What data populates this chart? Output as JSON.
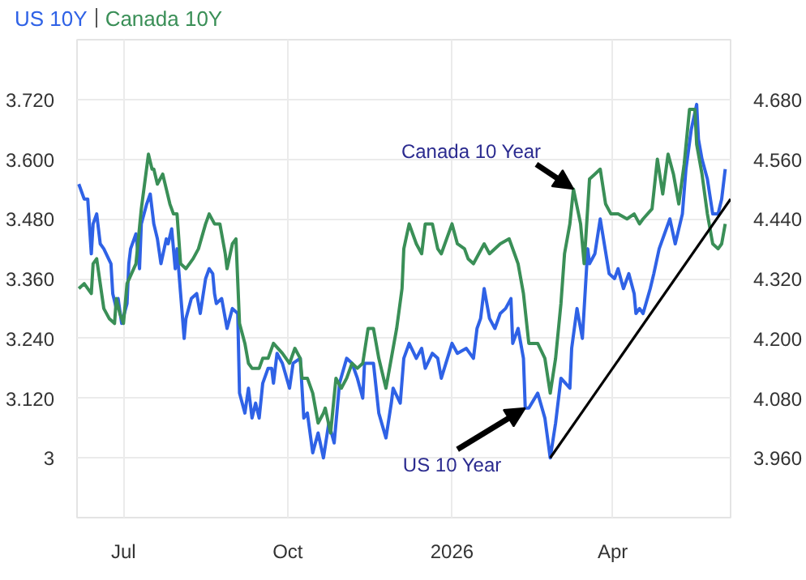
{
  "chart_data": {
    "type": "line",
    "grid": true,
    "line_style": "solid",
    "xlim": [
      "2025-06-05",
      "2026-06-06"
    ],
    "xticks": [
      {
        "value": "2025-07-01",
        "label": "Jul"
      },
      {
        "value": "2025-10-01",
        "label": "Oct"
      },
      {
        "value": "2026-01-01",
        "label": "2026"
      },
      {
        "value": "2026-04-01",
        "label": "Apr"
      }
    ],
    "ylim": [
      2.88,
      3.84
    ],
    "yticks": [
      3,
      {
        "value": 3.12,
        "label": "3.120"
      },
      {
        "value": 3.24,
        "label": "3.240"
      },
      {
        "value": 3.36,
        "label": "3.360"
      },
      {
        "value": 3.48,
        "label": "3.480"
      },
      {
        "value": 3.6,
        "label": "3.600"
      },
      {
        "value": 3.72,
        "label": "3.720"
      }
    ],
    "y2lim": [
      3.84,
      4.8
    ],
    "y2ticks": [
      {
        "value": 3.96,
        "label": "3.960"
      },
      {
        "value": 4.08,
        "label": "4.080"
      },
      {
        "value": 4.2,
        "label": "4.200"
      },
      {
        "value": 4.32,
        "label": "4.320"
      },
      {
        "value": 4.44,
        "label": "4.440"
      },
      {
        "value": 4.56,
        "label": "4.560"
      },
      {
        "value": 4.68,
        "label": "4.680"
      }
    ],
    "series": [
      {
        "name": "US 10Y",
        "color": "#2f62e6",
        "axis": "y2",
        "x": [
          "2025-06-06",
          "2025-06-09",
          "2025-06-11",
          "2025-06-13",
          "2025-06-14",
          "2025-06-16",
          "2025-06-18",
          "2025-06-20",
          "2025-06-24",
          "2025-06-25",
          "2025-06-27",
          "2025-06-28",
          "2025-06-30",
          "2025-07-03",
          "2025-07-04",
          "2025-07-05",
          "2025-07-08",
          "2025-07-10",
          "2025-07-11",
          "2025-07-14",
          "2025-07-16",
          "2025-07-18",
          "2025-07-20",
          "2025-07-22",
          "2025-07-25",
          "2025-07-26",
          "2025-07-28",
          "2025-07-30",
          "2025-07-31",
          "2025-08-02",
          "2025-08-04",
          "2025-08-05",
          "2025-08-08",
          "2025-08-11",
          "2025-08-13",
          "2025-08-16",
          "2025-08-18",
          "2025-08-20",
          "2025-08-21",
          "2025-08-22",
          "2025-08-25",
          "2025-08-28",
          "2025-08-31",
          "2025-09-03",
          "2025-09-04",
          "2025-09-07",
          "2025-09-09",
          "2025-09-11",
          "2025-09-13",
          "2025-09-15",
          "2025-09-17",
          "2025-09-20",
          "2025-09-22",
          "2025-09-23",
          "2025-09-25",
          "2025-09-28",
          "2025-10-02",
          "2025-10-04",
          "2025-10-08",
          "2025-10-10",
          "2025-10-12",
          "2025-10-15",
          "2025-10-18",
          "2025-10-21",
          "2025-10-24",
          "2025-10-27",
          "2025-10-30",
          "2025-11-03",
          "2025-11-06",
          "2025-11-09",
          "2025-11-12",
          "2025-11-13",
          "2025-11-18",
          "2025-11-21",
          "2025-11-25",
          "2025-11-28",
          "2025-11-29",
          "2025-12-03",
          "2025-12-05",
          "2025-12-08",
          "2025-12-12",
          "2025-12-15",
          "2025-12-17",
          "2025-12-21",
          "2025-12-24",
          "2025-12-26",
          "2026-01-01",
          "2026-01-04",
          "2026-01-09",
          "2026-01-13",
          "2026-01-15",
          "2026-01-17",
          "2026-01-19",
          "2026-01-22",
          "2026-01-25",
          "2026-01-28",
          "2026-01-31",
          "2026-02-03",
          "2026-02-04",
          "2026-02-07",
          "2026-02-10",
          "2026-02-11",
          "2026-02-13",
          "2026-02-18",
          "2026-02-22",
          "2026-02-25",
          "2026-02-28",
          "2026-03-03",
          "2026-03-08",
          "2026-03-09",
          "2026-03-12",
          "2026-03-15",
          "2026-03-18",
          "2026-03-19",
          "2026-03-22",
          "2026-03-25",
          "2026-03-30",
          "2026-04-02",
          "2026-04-04",
          "2026-04-07",
          "2026-04-10",
          "2026-04-13",
          "2026-04-14",
          "2026-04-16",
          "2026-04-18",
          "2026-04-22",
          "2026-04-24",
          "2026-04-27",
          "2026-05-01",
          "2026-05-03",
          "2026-05-06",
          "2026-05-10",
          "2026-05-12",
          "2026-05-15",
          "2026-05-18",
          "2026-05-19",
          "2026-05-21",
          "2026-05-24",
          "2026-05-27",
          "2026-05-30",
          "2026-06-01",
          "2026-06-03"
        ],
        "values": [
          4.51,
          4.48,
          4.48,
          4.37,
          4.43,
          4.45,
          4.39,
          4.38,
          4.35,
          4.29,
          4.26,
          4.28,
          4.23,
          4.27,
          4.35,
          4.38,
          4.41,
          4.34,
          4.43,
          4.47,
          4.49,
          4.43,
          4.4,
          4.35,
          4.4,
          4.39,
          4.42,
          4.34,
          4.38,
          4.29,
          4.2,
          4.24,
          4.28,
          4.29,
          4.25,
          4.32,
          4.34,
          4.33,
          4.29,
          4.27,
          4.28,
          4.22,
          4.26,
          4.25,
          4.09,
          4.05,
          4.1,
          4.04,
          4.07,
          4.04,
          4.11,
          4.14,
          4.14,
          4.11,
          4.17,
          4.15,
          4.1,
          4.15,
          4.16,
          4.04,
          4.05,
          3.97,
          4.01,
          3.96,
          4.03,
          3.99,
          4.11,
          4.16,
          4.15,
          4.12,
          4.08,
          4.15,
          4.15,
          4.05,
          4.0,
          4.07,
          4.1,
          4.07,
          4.16,
          4.19,
          4.16,
          4.18,
          4.14,
          4.17,
          4.16,
          4.12,
          4.19,
          4.17,
          4.18,
          4.16,
          4.22,
          4.24,
          4.3,
          4.24,
          4.22,
          4.25,
          4.26,
          4.28,
          4.19,
          4.22,
          4.16,
          4.06,
          4.06,
          4.09,
          4.04,
          3.96,
          4.03,
          4.12,
          4.1,
          4.18,
          4.26,
          4.2,
          4.38,
          4.35,
          4.37,
          4.44,
          4.33,
          4.32,
          4.34,
          4.3,
          4.33,
          4.29,
          4.25,
          4.26,
          4.25,
          4.3,
          4.33,
          4.38,
          4.42,
          4.44,
          4.39,
          4.45,
          4.54,
          4.62,
          4.67,
          4.6,
          4.56,
          4.52,
          4.45,
          4.45,
          4.48,
          4.54
        ]
      },
      {
        "name": "Canada 10Y",
        "color": "#3a8f57",
        "x": [
          "2025-06-06",
          "2025-06-09",
          "2025-06-13",
          "2025-06-14",
          "2025-06-16",
          "2025-06-20",
          "2025-06-23",
          "2025-06-26",
          "2025-06-27",
          "2025-06-29",
          "2025-07-01",
          "2025-07-03",
          "2025-07-08",
          "2025-07-11",
          "2025-07-15",
          "2025-07-17",
          "2025-07-18",
          "2025-07-20",
          "2025-07-23",
          "2025-07-25",
          "2025-07-27",
          "2025-07-29",
          "2025-07-31",
          "2025-08-02",
          "2025-08-05",
          "2025-08-09",
          "2025-08-12",
          "2025-08-16",
          "2025-08-18",
          "2025-08-21",
          "2025-08-24",
          "2025-08-27",
          "2025-08-28",
          "2025-08-31",
          "2025-09-02",
          "2025-09-04",
          "2025-09-07",
          "2025-09-09",
          "2025-09-11",
          "2025-09-15",
          "2025-09-17",
          "2025-09-20",
          "2025-09-23",
          "2025-09-28",
          "2025-10-02",
          "2025-10-05",
          "2025-10-08",
          "2025-10-09",
          "2025-10-12",
          "2025-10-15",
          "2025-10-18",
          "2025-10-21",
          "2025-10-22",
          "2025-10-25",
          "2025-10-28",
          "2025-10-31",
          "2025-11-03",
          "2025-11-06",
          "2025-11-09",
          "2025-11-12",
          "2025-11-15",
          "2025-11-18",
          "2025-11-21",
          "2025-11-25",
          "2025-11-28",
          "2025-12-01",
          "2025-12-04",
          "2025-12-05",
          "2025-12-08",
          "2025-12-12",
          "2025-12-15",
          "2025-12-17",
          "2025-12-21",
          "2025-12-24",
          "2025-12-26",
          "2026-01-01",
          "2026-01-04",
          "2026-01-08",
          "2026-01-10",
          "2026-01-13",
          "2026-01-19",
          "2026-01-22",
          "2026-01-28",
          "2026-02-02",
          "2026-02-05",
          "2026-02-07",
          "2026-02-10",
          "2026-02-13",
          "2026-02-18",
          "2026-02-22",
          "2026-02-25",
          "2026-02-28",
          "2026-03-03",
          "2026-03-05",
          "2026-03-08",
          "2026-03-10",
          "2026-03-14",
          "2026-03-16",
          "2026-03-19",
          "2026-03-22",
          "2026-03-25",
          "2026-03-28",
          "2026-03-31",
          "2026-04-04",
          "2026-04-09",
          "2026-04-13",
          "2026-04-16",
          "2026-04-18",
          "2026-04-23",
          "2026-04-26",
          "2026-04-29",
          "2026-05-02",
          "2026-05-05",
          "2026-05-08",
          "2026-05-11",
          "2026-05-14",
          "2026-05-17",
          "2026-05-18",
          "2026-05-21",
          "2026-05-24",
          "2026-05-27",
          "2026-05-30",
          "2026-06-01",
          "2026-06-03"
        ],
        "values": [
          3.34,
          3.35,
          3.33,
          3.39,
          3.4,
          3.3,
          3.28,
          3.27,
          3.32,
          3.29,
          3.27,
          3.35,
          3.39,
          3.5,
          3.61,
          3.58,
          3.58,
          3.55,
          3.57,
          3.54,
          3.51,
          3.49,
          3.49,
          3.39,
          3.38,
          3.4,
          3.42,
          3.47,
          3.49,
          3.47,
          3.47,
          3.41,
          3.38,
          3.43,
          3.44,
          3.27,
          3.23,
          3.19,
          3.18,
          3.18,
          3.2,
          3.2,
          3.23,
          3.21,
          3.19,
          3.22,
          3.2,
          3.16,
          3.16,
          3.13,
          3.07,
          3.09,
          3.1,
          3.05,
          3.16,
          3.14,
          3.16,
          3.19,
          3.18,
          3.19,
          3.26,
          3.26,
          3.2,
          3.14,
          3.2,
          3.26,
          3.34,
          3.42,
          3.47,
          3.43,
          3.41,
          3.47,
          3.47,
          3.42,
          3.41,
          3.47,
          3.43,
          3.42,
          3.4,
          3.39,
          3.43,
          3.41,
          3.43,
          3.44,
          3.41,
          3.39,
          3.33,
          3.23,
          3.23,
          3.2,
          3.13,
          3.2,
          3.31,
          3.41,
          3.47,
          3.54,
          3.47,
          3.39,
          3.56,
          3.57,
          3.58,
          3.51,
          3.49,
          3.49,
          3.48,
          3.49,
          3.47,
          3.48,
          3.5,
          3.6,
          3.53,
          3.61,
          3.57,
          3.51,
          3.59,
          3.7,
          3.7,
          3.63,
          3.57,
          3.49,
          3.43,
          3.42,
          3.43,
          3.47
        ]
      },
      {
        "type": "line",
        "color": "#000000",
        "axis": "y2",
        "x": [
          "2026-02-25",
          "2026-06-06"
        ],
        "values": [
          3.96,
          4.48
        ]
      }
    ],
    "annotations": [
      {
        "text": "Canada 10 Year",
        "x": "2026-03-10",
        "y": 3.54
      },
      {
        "text": "US 10 Year",
        "x": "2026-02-11",
        "y": 3.1
      }
    ]
  }
}
